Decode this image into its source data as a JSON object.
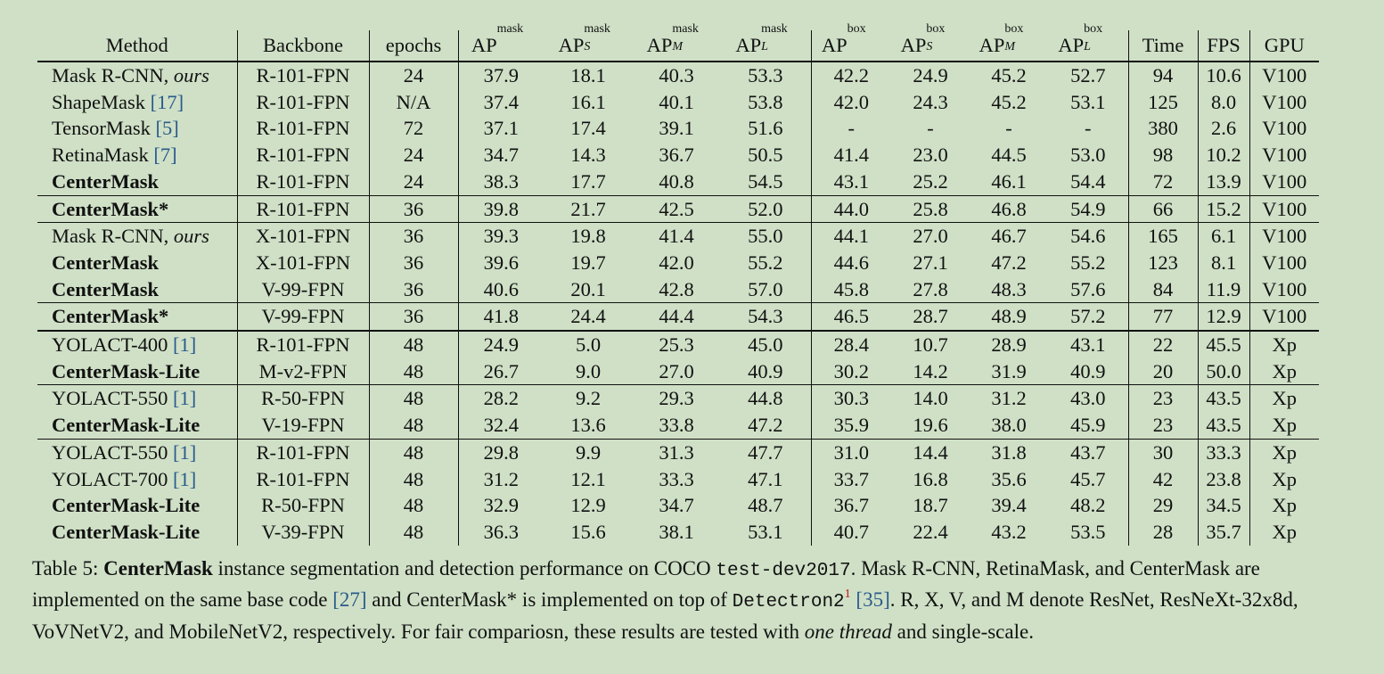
{
  "table": {
    "headers": [
      {
        "main": "Method"
      },
      {
        "main": "Backbone"
      },
      {
        "main": "epochs"
      },
      {
        "main": "AP",
        "sup": "mask",
        "sub": ""
      },
      {
        "main": "AP",
        "sup": "mask",
        "sub": "S"
      },
      {
        "main": "AP",
        "sup": "mask",
        "sub": "M"
      },
      {
        "main": "AP",
        "sup": "mask",
        "sub": "L"
      },
      {
        "main": "AP",
        "sup": "box",
        "sub": ""
      },
      {
        "main": "AP",
        "sup": "box",
        "sub": "S"
      },
      {
        "main": "AP",
        "sup": "box",
        "sub": "M"
      },
      {
        "main": "AP",
        "sup": "box",
        "sub": "L"
      },
      {
        "main": "Time"
      },
      {
        "main": "FPS"
      },
      {
        "main": "GPU"
      }
    ],
    "groups": [
      {
        "rows": [
          {
            "method": "Mask R-CNN, ",
            "method_italic": "ours",
            "ref": "",
            "method_bold": false,
            "cells": [
              "R-101-FPN",
              "24",
              "37.9",
              "18.1",
              "40.3",
              "53.3",
              "42.2",
              "24.9",
              "45.2",
              "52.7",
              "94",
              "10.6",
              "V100"
            ],
            "bold": [
              3
            ]
          },
          {
            "method": "ShapeMask ",
            "method_italic": "",
            "ref": "[17]",
            "method_bold": false,
            "cells": [
              "R-101-FPN",
              "N/A",
              "37.4",
              "16.1",
              "40.1",
              "53.8",
              "42.0",
              "24.3",
              "45.2",
              "53.1",
              "125",
              "8.0",
              "V100"
            ],
            "bold": []
          },
          {
            "method": "TensorMask ",
            "method_italic": "",
            "ref": "[5]",
            "method_bold": false,
            "cells": [
              "R-101-FPN",
              "72",
              "37.1",
              "17.4",
              "39.1",
              "51.6",
              "-",
              "-",
              "-",
              "-",
              "380",
              "2.6",
              "V100"
            ],
            "bold": []
          },
          {
            "method": "RetinaMask ",
            "method_italic": "",
            "ref": "[7]",
            "method_bold": false,
            "cells": [
              "R-101-FPN",
              "24",
              "34.7",
              "14.3",
              "36.7",
              "50.5",
              "41.4",
              "23.0",
              "44.5",
              "53.0",
              "98",
              "10.2",
              "V100"
            ],
            "bold": []
          },
          {
            "method": "CenterMask",
            "method_italic": "",
            "ref": "",
            "method_bold": true,
            "cells": [
              "R-101-FPN",
              "24",
              "38.3",
              "17.7",
              "40.8",
              "54.5",
              "43.1",
              "25.2",
              "46.1",
              "54.4",
              "72",
              "13.9",
              "V100"
            ],
            "bold": [
              2,
              4,
              5,
              6,
              7,
              8,
              9,
              10,
              11
            ]
          }
        ]
      },
      {
        "sep": "thin",
        "rows": [
          {
            "method": "CenterMask*",
            "method_italic": "",
            "ref": "",
            "method_bold": true,
            "cells": [
              "R-101-FPN",
              "36",
              "39.8",
              "21.7",
              "42.5",
              "52.0",
              "44.0",
              "25.8",
              "46.8",
              "54.9",
              "66",
              "15.2",
              "V100"
            ],
            "bold": []
          }
        ]
      },
      {
        "sep": "thin",
        "rows": [
          {
            "method": "Mask R-CNN, ",
            "method_italic": "ours",
            "ref": "",
            "method_bold": false,
            "cells": [
              "X-101-FPN",
              "36",
              "39.3",
              "19.8",
              "41.4",
              "55.0",
              "44.1",
              "27.0",
              "46.7",
              "54.6",
              "165",
              "6.1",
              "V100"
            ],
            "bold": []
          },
          {
            "method": "CenterMask",
            "method_italic": "",
            "ref": "",
            "method_bold": true,
            "cells": [
              "X-101-FPN",
              "36",
              "39.6",
              "19.7",
              "42.0",
              "55.2",
              "44.6",
              "27.1",
              "47.2",
              "55.2",
              "123",
              "8.1",
              "V100"
            ],
            "bold": []
          },
          {
            "method": "CenterMask",
            "method_italic": "",
            "ref": "",
            "method_bold": true,
            "cells": [
              "V-99-FPN",
              "36",
              "40.6",
              "20.1",
              "42.8",
              "57.0",
              "45.8",
              "27.8",
              "48.3",
              "57.6",
              "84",
              "11.9",
              "V100"
            ],
            "bold": [
              2,
              3,
              4,
              5,
              6,
              7,
              8,
              9,
              10,
              11
            ]
          }
        ]
      },
      {
        "sep": "thin",
        "rows": [
          {
            "method": "CenterMask*",
            "method_italic": "",
            "ref": "",
            "method_bold": true,
            "cells": [
              "V-99-FPN",
              "36",
              "41.8",
              "24.4",
              "44.4",
              "54.3",
              "46.5",
              "28.7",
              "48.9",
              "57.2",
              "77",
              "12.9",
              "V100"
            ],
            "bold": []
          }
        ]
      },
      {
        "sep": "thick",
        "rows": [
          {
            "method": "YOLACT-400 ",
            "method_italic": "",
            "ref": "[1]",
            "method_bold": false,
            "cells": [
              "R-101-FPN",
              "48",
              "24.9",
              "5.0",
              "25.3",
              "45.0",
              "28.4",
              "10.7",
              "28.9",
              "43.1",
              "22",
              "45.5",
              "Xp"
            ],
            "bold": [
              5,
              9
            ]
          },
          {
            "method": "CenterMask-Lite",
            "method_italic": "",
            "ref": "",
            "method_bold": true,
            "cells": [
              "M-v2-FPN",
              "48",
              "26.7",
              "9.0",
              "27.0",
              "40.9",
              "30.2",
              "14.2",
              "31.9",
              "40.9",
              "20",
              "50.0",
              "Xp"
            ],
            "bold": [
              2,
              3,
              4,
              6,
              7,
              8,
              10,
              11
            ]
          }
        ]
      },
      {
        "sep": "thin",
        "rows": [
          {
            "method": "YOLACT-550 ",
            "method_italic": "",
            "ref": "[1]",
            "method_bold": false,
            "cells": [
              "R-50-FPN",
              "48",
              "28.2",
              "9.2",
              "29.3",
              "44.8",
              "30.3",
              "14.0",
              "31.2",
              "43.0",
              "23",
              "43.5",
              "Xp"
            ],
            "bold": []
          },
          {
            "method": "CenterMask-Lite",
            "method_italic": "",
            "ref": "",
            "method_bold": true,
            "cells": [
              "V-19-FPN",
              "48",
              "32.4",
              "13.6",
              "33.8",
              "47.2",
              "35.9",
              "19.6",
              "38.0",
              "45.9",
              "23",
              "43.5",
              "Xp"
            ],
            "bold": [
              2,
              3,
              4,
              5,
              6,
              7,
              8,
              9,
              10,
              11
            ]
          }
        ]
      },
      {
        "sep": "thin",
        "rows": [
          {
            "method": "YOLACT-550 ",
            "method_italic": "",
            "ref": "[1]",
            "method_bold": false,
            "cells": [
              "R-101-FPN",
              "48",
              "29.8",
              "9.9",
              "31.3",
              "47.7",
              "31.0",
              "14.4",
              "31.8",
              "43.7",
              "30",
              "33.3",
              "Xp"
            ],
            "bold": []
          },
          {
            "method": "YOLACT-700 ",
            "method_italic": "",
            "ref": "[1]",
            "method_bold": false,
            "cells": [
              "R-101-FPN",
              "48",
              "31.2",
              "12.1",
              "33.3",
              "47.1",
              "33.7",
              "16.8",
              "35.6",
              "45.7",
              "42",
              "23.8",
              "Xp"
            ],
            "bold": []
          },
          {
            "method": "CenterMask-Lite",
            "method_italic": "",
            "ref": "",
            "method_bold": true,
            "cells": [
              "R-50-FPN",
              "48",
              "32.9",
              "12.9",
              "34.7",
              "48.7",
              "36.7",
              "18.7",
              "39.4",
              "48.2",
              "29",
              "34.5",
              "Xp"
            ],
            "bold": []
          },
          {
            "method": "CenterMask-Lite",
            "method_italic": "",
            "ref": "",
            "method_bold": true,
            "cells": [
              "V-39-FPN",
              "48",
              "36.3",
              "15.6",
              "38.1",
              "53.1",
              "40.7",
              "22.4",
              "43.2",
              "53.5",
              "28",
              "35.7",
              "Xp"
            ],
            "bold": [
              2,
              3,
              4,
              5,
              6,
              7,
              8,
              9,
              10,
              11
            ]
          }
        ]
      }
    ]
  },
  "caption": {
    "label": "Table 5: ",
    "bold": "CenterMask",
    "t1": " instance segmentation and detection performance on COCO ",
    "mono1": "test-dev2017",
    "t2": ". Mask R-CNN, RetinaMask, and CenterMask are implemented on the same base code ",
    "ref1": "[27]",
    "t3": " and CenterMask* is implemented on top of ",
    "mono2": "Detectron2",
    "footnote": "1",
    "t4": " ",
    "ref2": "[35]",
    "t5": ". R, X, V, and M denote ResNet, ResNeXt-32x8d, VoVNetV2, and MobileNetV2, respectively. For fair compariosn, these results are tested with ",
    "italic": "one thread",
    "t6": " and single-scale."
  }
}
